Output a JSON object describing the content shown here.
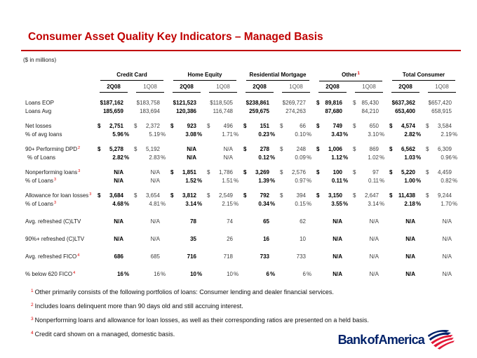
{
  "slide": {
    "title": "Consumer Asset Quality Key Indicators – Managed Basis",
    "units_note": "($ in millions)"
  },
  "table": {
    "groups": [
      {
        "label": "Credit Card",
        "sup": ""
      },
      {
        "label": "Home Equity",
        "sup": ""
      },
      {
        "label": "Residential Mortgage",
        "sup": ""
      },
      {
        "label": "Other",
        "sup": "1"
      },
      {
        "label": "Total Consumer",
        "sup": ""
      }
    ],
    "period_headers": [
      "2Q08",
      "1Q08"
    ],
    "rows": [
      {
        "label": "Loans EOP",
        "sup": "",
        "indent": false,
        "gap": "none",
        "cells": [
          [
            "",
            "$187,162",
            ""
          ],
          [
            "",
            "$183,758",
            ""
          ],
          [
            "",
            "$121,523",
            ""
          ],
          [
            "",
            "$118,505",
            ""
          ],
          [
            "",
            "$238,861",
            ""
          ],
          [
            "",
            "$269,727",
            ""
          ],
          [
            "$",
            "89,816",
            ""
          ],
          [
            "$",
            "85,430",
            ""
          ],
          [
            "",
            "$637,362",
            ""
          ],
          [
            "",
            "$657,420",
            ""
          ]
        ]
      },
      {
        "label": "Loans Avg",
        "sup": "",
        "indent": false,
        "gap": "none",
        "cells": [
          [
            "",
            "185,659",
            ""
          ],
          [
            "",
            "183,694",
            ""
          ],
          [
            "",
            "120,386",
            ""
          ],
          [
            "",
            "116,748",
            ""
          ],
          [
            "",
            "259,675",
            ""
          ],
          [
            "",
            "274,263",
            ""
          ],
          [
            "",
            "87,680",
            ""
          ],
          [
            "",
            "84,210",
            ""
          ],
          [
            "",
            "653,400",
            ""
          ],
          [
            "",
            "658,915",
            ""
          ]
        ]
      },
      {
        "label": "Net losses",
        "sup": "",
        "indent": false,
        "gap": "group",
        "cells": [
          [
            "$",
            "2,751",
            ""
          ],
          [
            "$",
            "2,372",
            ""
          ],
          [
            "$",
            "923",
            ""
          ],
          [
            "$",
            "496",
            ""
          ],
          [
            "$",
            "151",
            ""
          ],
          [
            "$",
            "66",
            ""
          ],
          [
            "$",
            "749",
            ""
          ],
          [
            "$",
            "650",
            ""
          ],
          [
            "$",
            "4,574",
            ""
          ],
          [
            "$",
            "3,584",
            ""
          ]
        ]
      },
      {
        "label": "% of avg loans",
        "sup": "",
        "indent": false,
        "gap": "none",
        "cells": [
          [
            "",
            "5.96",
            "%"
          ],
          [
            "",
            "5.19",
            "%"
          ],
          [
            "",
            "3.08",
            "%"
          ],
          [
            "",
            "1.71",
            "%"
          ],
          [
            "",
            "0.23",
            "%"
          ],
          [
            "",
            "0.10",
            "%"
          ],
          [
            "",
            "3.43",
            "%"
          ],
          [
            "",
            "3.10",
            "%"
          ],
          [
            "",
            "2.82",
            "%"
          ],
          [
            "",
            "2.19",
            "%"
          ]
        ]
      },
      {
        "label": "90+ Performing DPD",
        "sup": "2",
        "indent": false,
        "gap": "group",
        "cells": [
          [
            "$",
            "5,278",
            ""
          ],
          [
            "$",
            "5,192",
            ""
          ],
          [
            "",
            "N/A",
            ""
          ],
          [
            "",
            "N/A",
            ""
          ],
          [
            "$",
            "278",
            ""
          ],
          [
            "$",
            "248",
            ""
          ],
          [
            "$",
            "1,006",
            ""
          ],
          [
            "$",
            "869",
            ""
          ],
          [
            "$",
            "6,562",
            ""
          ],
          [
            "$",
            "6,309",
            ""
          ]
        ]
      },
      {
        "label": "% of Loans",
        "sup": "",
        "indent": true,
        "gap": "none",
        "cells": [
          [
            "",
            "2.82",
            "%"
          ],
          [
            "",
            "2.83",
            "%"
          ],
          [
            "",
            "N/A",
            ""
          ],
          [
            "",
            "N/A",
            ""
          ],
          [
            "",
            "0.12",
            "%"
          ],
          [
            "",
            "0.09",
            "%"
          ],
          [
            "",
            "1.12",
            "%"
          ],
          [
            "",
            "1.02",
            "%"
          ],
          [
            "",
            "1.03",
            "%"
          ],
          [
            "",
            "0.96",
            "%"
          ]
        ]
      },
      {
        "label": "Nonperforming loans",
        "sup": "3",
        "indent": false,
        "gap": "group",
        "cells": [
          [
            "",
            "N/A",
            ""
          ],
          [
            "",
            "N/A",
            ""
          ],
          [
            "$",
            "1,851",
            ""
          ],
          [
            "$",
            "1,786",
            ""
          ],
          [
            "$",
            "3,269",
            ""
          ],
          [
            "$",
            "2,576",
            ""
          ],
          [
            "$",
            "100",
            ""
          ],
          [
            "$",
            "97",
            ""
          ],
          [
            "$",
            "5,220",
            ""
          ],
          [
            "$",
            "4,459",
            ""
          ]
        ]
      },
      {
        "label": "% of Loans",
        "sup": "3",
        "indent": false,
        "gap": "none",
        "cells": [
          [
            "",
            "N/A",
            ""
          ],
          [
            "",
            "N/A",
            ""
          ],
          [
            "",
            "1.52",
            "%"
          ],
          [
            "",
            "1.51",
            "%"
          ],
          [
            "",
            "1.39",
            "%"
          ],
          [
            "",
            "0.97",
            "%"
          ],
          [
            "",
            "0.11",
            "%"
          ],
          [
            "",
            "0.11",
            "%"
          ],
          [
            "",
            "1.00",
            "%"
          ],
          [
            "",
            "0.82",
            "%"
          ]
        ]
      },
      {
        "label": "Allowance for loan losses",
        "sup": "3",
        "indent": false,
        "gap": "group",
        "cells": [
          [
            "$",
            "3,684",
            ""
          ],
          [
            "$",
            "3,654",
            ""
          ],
          [
            "$",
            "3,812",
            ""
          ],
          [
            "$",
            "2,549",
            ""
          ],
          [
            "$",
            "792",
            ""
          ],
          [
            "$",
            "394",
            ""
          ],
          [
            "$",
            "3,150",
            ""
          ],
          [
            "$",
            "2,647",
            ""
          ],
          [
            "$",
            "11,438",
            ""
          ],
          [
            "$",
            "9,244",
            ""
          ]
        ]
      },
      {
        "label": "% of Loans",
        "sup": "3",
        "indent": false,
        "gap": "none",
        "cells": [
          [
            "",
            "4.68",
            "%"
          ],
          [
            "",
            "4.81",
            "%"
          ],
          [
            "",
            "3.14",
            "%"
          ],
          [
            "",
            "2.15",
            "%"
          ],
          [
            "",
            "0.34",
            "%"
          ],
          [
            "",
            "0.15",
            "%"
          ],
          [
            "",
            "3.55",
            "%"
          ],
          [
            "",
            "3.14",
            "%"
          ],
          [
            "",
            "2.18",
            "%"
          ],
          [
            "",
            "1.70",
            "%"
          ]
        ]
      },
      {
        "label": "Avg. refreshed (C)LTV",
        "sup": "",
        "indent": false,
        "gap": "wide",
        "cells": [
          [
            "",
            "N/A",
            ""
          ],
          [
            "",
            "N/A",
            ""
          ],
          [
            "",
            "78",
            ""
          ],
          [
            "",
            "74",
            ""
          ],
          [
            "",
            "65",
            ""
          ],
          [
            "",
            "62",
            ""
          ],
          [
            "",
            "N/A",
            ""
          ],
          [
            "",
            "N/A",
            ""
          ],
          [
            "",
            "N/A",
            ""
          ],
          [
            "",
            "N/A",
            ""
          ]
        ]
      },
      {
        "label": "90%+ refreshed (C)LTV",
        "sup": "",
        "indent": false,
        "gap": "wide",
        "cells": [
          [
            "",
            "N/A",
            ""
          ],
          [
            "",
            "N/A",
            ""
          ],
          [
            "",
            "35",
            ""
          ],
          [
            "",
            "26",
            ""
          ],
          [
            "",
            "16",
            ""
          ],
          [
            "",
            "10",
            ""
          ],
          [
            "",
            "N/A",
            ""
          ],
          [
            "",
            "N/A",
            ""
          ],
          [
            "",
            "N/A",
            ""
          ],
          [
            "",
            "N/A",
            ""
          ]
        ]
      },
      {
        "label": "Avg. refreshed FICO",
        "sup": "4",
        "indent": false,
        "gap": "wide",
        "cells": [
          [
            "",
            "686",
            ""
          ],
          [
            "",
            "685",
            ""
          ],
          [
            "",
            "716",
            ""
          ],
          [
            "",
            "718",
            ""
          ],
          [
            "",
            "733",
            ""
          ],
          [
            "",
            "733",
            ""
          ],
          [
            "",
            "N/A",
            ""
          ],
          [
            "",
            "N/A",
            ""
          ],
          [
            "",
            "N/A",
            ""
          ],
          [
            "",
            "N/A",
            ""
          ]
        ]
      },
      {
        "label": "% below 620 FICO",
        "sup": "4",
        "indent": false,
        "gap": "wide",
        "cells": [
          [
            "",
            "16",
            "%"
          ],
          [
            "",
            "16",
            "%"
          ],
          [
            "",
            "10",
            "%"
          ],
          [
            "",
            "10",
            "%"
          ],
          [
            "",
            "6",
            "%"
          ],
          [
            "",
            "6",
            "%"
          ],
          [
            "",
            "N/A",
            ""
          ],
          [
            "",
            "N/A",
            ""
          ],
          [
            "",
            "N/A",
            ""
          ],
          [
            "",
            "N/A",
            ""
          ]
        ]
      }
    ]
  },
  "footnotes": [
    {
      "num": "1",
      "text": "Other primarily consists of the following portfolios of loans:  Consumer lending and dealer financial services."
    },
    {
      "num": "2",
      "text": "Includes loans delinquent more than 90 days old and still accruing interest."
    },
    {
      "num": "3",
      "text": "Nonperforming loans and allowance for loan losses, as well as their corresponding ratios are presented on a held basis."
    },
    {
      "num": "4",
      "text": "Credit card shown on a managed, domestic basis."
    }
  ],
  "logo": {
    "text": "Bank of America"
  },
  "colors": {
    "accent_red": "#C00000",
    "sup_red": "#E00000",
    "logo_blue": "#012169",
    "flag_red": "#E31837"
  }
}
